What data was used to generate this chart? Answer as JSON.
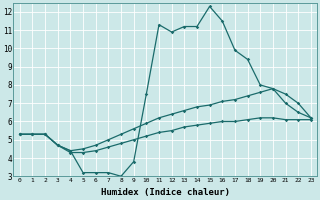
{
  "xlabel": "Humidex (Indice chaleur)",
  "ylabel": "",
  "xlim": [
    -0.5,
    23.5
  ],
  "ylim": [
    3,
    12.5
  ],
  "yticks": [
    3,
    4,
    5,
    6,
    7,
    8,
    9,
    10,
    11,
    12
  ],
  "xticks": [
    0,
    1,
    2,
    3,
    4,
    5,
    6,
    7,
    8,
    9,
    10,
    11,
    12,
    13,
    14,
    15,
    16,
    17,
    18,
    19,
    20,
    21,
    22,
    23
  ],
  "background_color": "#cce8e8",
  "grid_color": "#b0d4d4",
  "line_color": "#1a6b6b",
  "line1_x": [
    0,
    1,
    2,
    3,
    4,
    5,
    6,
    7,
    8,
    9,
    10,
    11,
    12,
    13,
    14,
    15,
    16,
    17,
    18,
    19,
    20,
    21,
    22,
    23
  ],
  "line1_y": [
    5.3,
    5.3,
    5.3,
    4.7,
    4.4,
    3.2,
    3.2,
    3.2,
    3.0,
    3.8,
    7.5,
    11.3,
    10.9,
    11.2,
    11.2,
    12.3,
    11.5,
    9.9,
    9.4,
    8.0,
    7.8,
    7.5,
    7.0,
    6.2
  ],
  "line2_x": [
    0,
    1,
    2,
    3,
    4,
    5,
    6,
    7,
    8,
    9,
    10,
    11,
    12,
    13,
    14,
    15,
    16,
    17,
    18,
    19,
    20,
    21,
    22,
    23
  ],
  "line2_y": [
    5.3,
    5.3,
    5.3,
    4.7,
    4.4,
    4.5,
    4.7,
    5.0,
    5.3,
    5.6,
    5.9,
    6.2,
    6.4,
    6.6,
    6.8,
    6.9,
    7.1,
    7.2,
    7.4,
    7.6,
    7.8,
    7.0,
    6.5,
    6.2
  ],
  "line3_x": [
    0,
    1,
    2,
    3,
    4,
    5,
    6,
    7,
    8,
    9,
    10,
    11,
    12,
    13,
    14,
    15,
    16,
    17,
    18,
    19,
    20,
    21,
    22,
    23
  ],
  "line3_y": [
    5.3,
    5.3,
    5.3,
    4.7,
    4.3,
    4.3,
    4.4,
    4.6,
    4.8,
    5.0,
    5.2,
    5.4,
    5.5,
    5.7,
    5.8,
    5.9,
    6.0,
    6.0,
    6.1,
    6.2,
    6.2,
    6.1,
    6.1,
    6.1
  ]
}
